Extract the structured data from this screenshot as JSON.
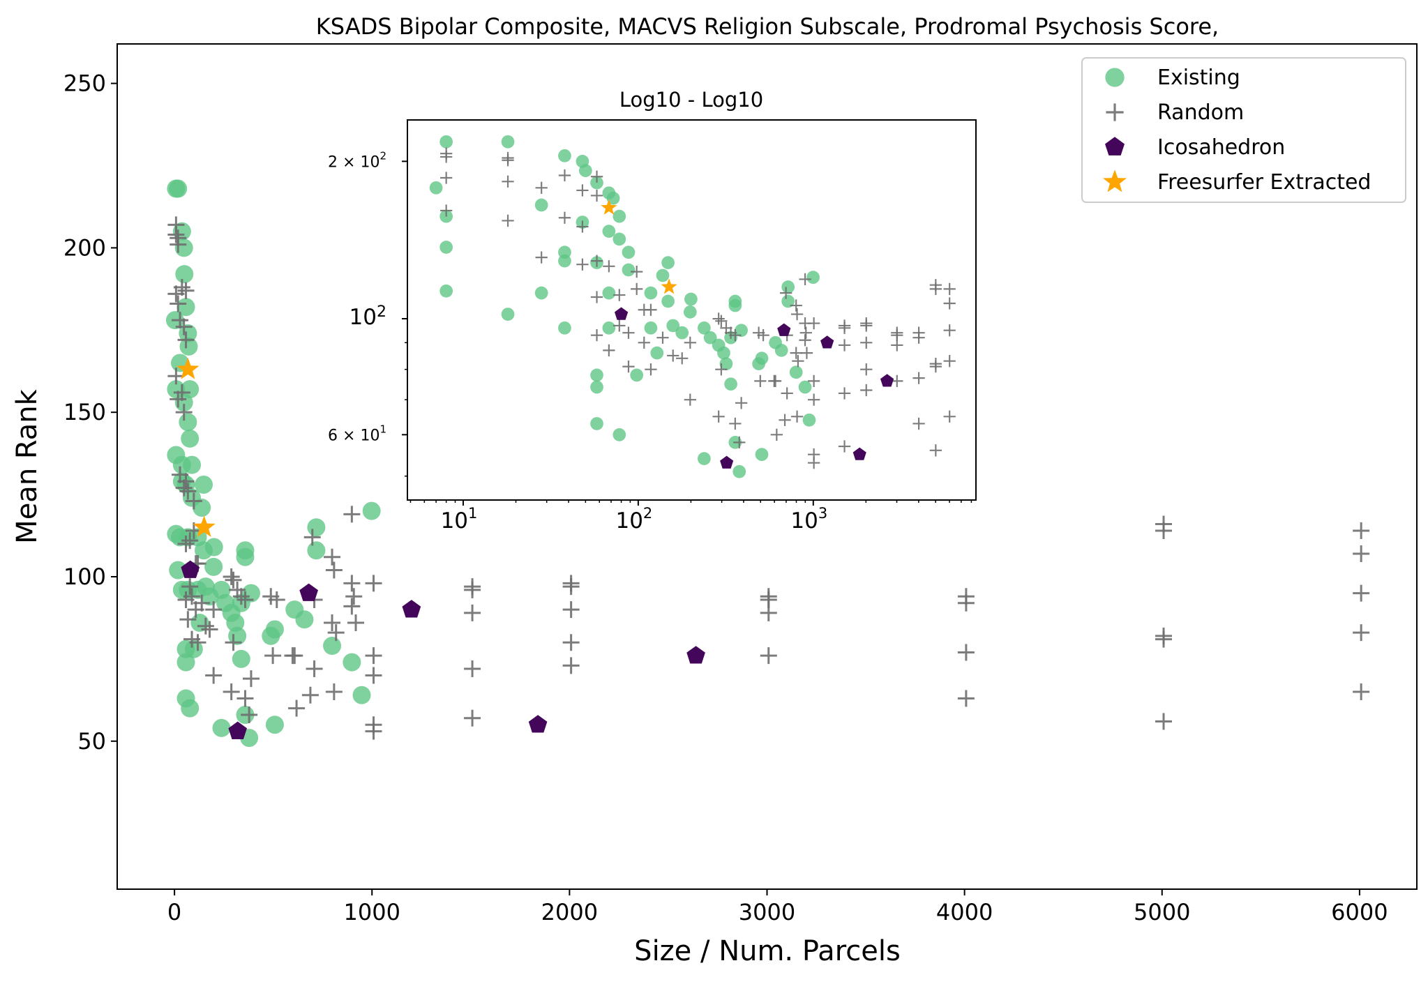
{
  "chart_data": [
    {
      "type": "scatter",
      "title": "KSADS Bipolar Composite, MACVS Religion Subscale, Prodromal Psychosis Score,",
      "xlabel": "Size / Num. Parcels",
      "ylabel": "Mean Rank",
      "xlim": [
        -290,
        6290
      ],
      "ylim": [
        5,
        262
      ],
      "xticks": [
        0,
        1000,
        2000,
        3000,
        4000,
        5000,
        6000
      ],
      "yticks": [
        50,
        100,
        150,
        200,
        250
      ],
      "legend_position": "top-right",
      "series": [
        {
          "name": "Existing",
          "marker": "circle",
          "color": "#5fc586",
          "points": [
            [
              8,
              218
            ],
            [
              18,
              218
            ],
            [
              38,
              205
            ],
            [
              48,
              200
            ],
            [
              50,
              192
            ],
            [
              58,
              182
            ],
            [
              3,
              178
            ],
            [
              68,
              174
            ],
            [
              72,
              170
            ],
            [
              28,
              165
            ],
            [
              8,
              157
            ],
            [
              78,
              157
            ],
            [
              48,
              153
            ],
            [
              68,
              147
            ],
            [
              78,
              142
            ],
            [
              8,
              137
            ],
            [
              38,
              134
            ],
            [
              88,
              134
            ],
            [
              38,
              129
            ],
            [
              58,
              128
            ],
            [
              88,
              124
            ],
            [
              148,
              128
            ],
            [
              8,
              113
            ],
            [
              28,
              112
            ],
            [
              68,
              112
            ],
            [
              118,
              112
            ],
            [
              138,
              121
            ],
            [
              148,
              108
            ],
            [
              200,
              109
            ],
            [
              18,
              102
            ],
            [
              38,
              96
            ],
            [
              68,
              96
            ],
            [
              118,
              96
            ],
            [
              158,
              97
            ],
            [
              178,
              94
            ],
            [
              198,
              103
            ],
            [
              238,
              96
            ],
            [
              258,
              92
            ],
            [
              288,
              89
            ],
            [
              308,
              86
            ],
            [
              338,
              92
            ],
            [
              358,
              106
            ],
            [
              358,
              108
            ],
            [
              388,
              95
            ],
            [
              488,
              82
            ],
            [
              508,
              84
            ],
            [
              608,
              90
            ],
            [
              658,
              87
            ],
            [
              718,
              115
            ],
            [
              718,
              108
            ],
            [
              798,
              79
            ],
            [
              898,
              74
            ],
            [
              948,
              64
            ],
            [
              998,
              120
            ],
            [
              128,
              86
            ],
            [
              58,
              78
            ],
            [
              98,
              78
            ],
            [
              58,
              74
            ],
            [
              58,
              63
            ],
            [
              78,
              60
            ],
            [
              238,
              54
            ],
            [
              318,
              82
            ],
            [
              338,
              75
            ],
            [
              358,
              58
            ],
            [
              378,
              51
            ],
            [
              508,
              55
            ]
          ]
        },
        {
          "name": "Random",
          "marker": "plus",
          "color": "#6e6e6e",
          "points": [
            [
              8,
              207
            ],
            [
              8,
              204
            ],
            [
              18,
              203
            ],
            [
              18,
              201
            ],
            [
              8,
              186
            ],
            [
              18,
              183
            ],
            [
              38,
              188
            ],
            [
              58,
              187
            ],
            [
              28,
              178
            ],
            [
              48,
              176
            ],
            [
              58,
              172
            ],
            [
              8,
              161
            ],
            [
              18,
              154
            ],
            [
              38,
              156
            ],
            [
              48,
              150
            ],
            [
              28,
              131
            ],
            [
              48,
              127
            ],
            [
              58,
              129
            ],
            [
              68,
              126
            ],
            [
              98,
              123
            ],
            [
              58,
              110
            ],
            [
              78,
              111
            ],
            [
              98,
              114
            ],
            [
              108,
              104
            ],
            [
              118,
              104
            ],
            [
              58,
              93
            ],
            [
              88,
              94
            ],
            [
              108,
              90
            ],
            [
              138,
              92
            ],
            [
              158,
              85
            ],
            [
              178,
              84
            ],
            [
              198,
              90
            ],
            [
              68,
              87
            ],
            [
              88,
              81
            ],
            [
              118,
              80
            ],
            [
              78,
              97
            ],
            [
              198,
              70
            ],
            [
              288,
              100
            ],
            [
              298,
              99
            ],
            [
              318,
              96
            ],
            [
              338,
              94
            ],
            [
              358,
              93
            ],
            [
              298,
              80
            ],
            [
              358,
              63
            ],
            [
              378,
              58
            ],
            [
              288,
              65
            ],
            [
              388,
              69
            ],
            [
              488,
              94
            ],
            [
              498,
              76
            ],
            [
              518,
              93
            ],
            [
              598,
              76
            ],
            [
              608,
              76
            ],
            [
              618,
              60
            ],
            [
              698,
              112
            ],
            [
              708,
              93
            ],
            [
              708,
              72
            ],
            [
              688,
              64
            ],
            [
              798,
              106
            ],
            [
              808,
              102
            ],
            [
              798,
              86
            ],
            [
              818,
              83
            ],
            [
              808,
              65
            ],
            [
              898,
              119
            ],
            [
              898,
              98
            ],
            [
              898,
              91
            ],
            [
              908,
              94
            ],
            [
              918,
              86
            ],
            [
              1008,
              98
            ],
            [
              1008,
              76
            ],
            [
              1008,
              70
            ],
            [
              1008,
              55
            ],
            [
              1008,
              53
            ],
            [
              1508,
              97
            ],
            [
              1508,
              96
            ],
            [
              1508,
              89
            ],
            [
              1508,
              72
            ],
            [
              1508,
              57
            ],
            [
              2008,
              98
            ],
            [
              2008,
              97
            ],
            [
              2008,
              90
            ],
            [
              2008,
              80
            ],
            [
              2008,
              73
            ],
            [
              3008,
              94
            ],
            [
              3008,
              93
            ],
            [
              3008,
              89
            ],
            [
              3008,
              76
            ],
            [
              4008,
              94
            ],
            [
              4008,
              92
            ],
            [
              4008,
              77
            ],
            [
              4008,
              63
            ],
            [
              5008,
              116
            ],
            [
              5008,
              114
            ],
            [
              5008,
              82
            ],
            [
              5008,
              81
            ],
            [
              5008,
              56
            ],
            [
              6008,
              114
            ],
            [
              6008,
              107
            ],
            [
              6008,
              95
            ],
            [
              6008,
              83
            ],
            [
              6008,
              65
            ]
          ]
        },
        {
          "name": "Icosahedron",
          "marker": "pentagon",
          "color": "#44065a",
          "points": [
            [
              80,
              102
            ],
            [
              320,
              53
            ],
            [
              680,
              95
            ],
            [
              1200,
              90
            ],
            [
              1840,
              55
            ],
            [
              2640,
              76
            ]
          ]
        },
        {
          "name": "Freesurfer Extracted",
          "marker": "star",
          "color": "#ffa500",
          "points": [
            [
              68,
              163
            ],
            [
              150,
              115
            ]
          ]
        }
      ]
    },
    {
      "type": "scatter",
      "title": "Log10 - Log10",
      "x_scale": "log",
      "y_scale": "log",
      "xlim": [
        4.8,
        8500
      ],
      "ylim": [
        45,
        240
      ],
      "xticks": [
        "10^1",
        "10^2",
        "10^3"
      ],
      "yticks": [
        "6 × 10^1",
        "10^2",
        "2 × 10^2"
      ],
      "series_ref": "same data as main chart, log-log axes"
    }
  ],
  "text": {
    "title": "KSADS Bipolar Composite, MACVS Religion Subscale, Prodromal Psychosis Score,",
    "xlabel": "Size / Num. Parcels",
    "ylabel": "Mean Rank",
    "inset_title": "Log10 - Log10",
    "legend": [
      "Existing",
      "Random",
      "Icosahedron",
      "Freesurfer Extracted"
    ],
    "xticks": [
      "0",
      "1000",
      "2000",
      "3000",
      "4000",
      "5000",
      "6000"
    ],
    "yticks": [
      "50",
      "100",
      "150",
      "200",
      "250"
    ],
    "inset_xticks": [
      [
        "10",
        "1"
      ],
      [
        "10",
        "2"
      ],
      [
        "10",
        "3"
      ]
    ],
    "inset_yticks": [
      [
        "6 × 10",
        "1"
      ],
      [
        "10",
        "2"
      ],
      [
        "2 × 10",
        "2"
      ]
    ]
  }
}
